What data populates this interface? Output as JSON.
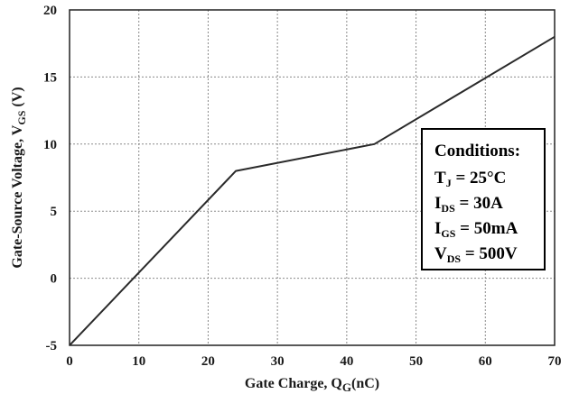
{
  "chart_data": {
    "type": "line",
    "xlabel": {
      "main": "Gate Charge, Q",
      "sub": "G",
      "tail": "(nC)"
    },
    "ylabel": {
      "main": "Gate-Source Voltage, V",
      "sub": "GS",
      "tail": " (V)"
    },
    "xlim": [
      0,
      70
    ],
    "ylim": [
      -5,
      20
    ],
    "xticks": [
      "0",
      "10",
      "20",
      "30",
      "40",
      "50",
      "60",
      "70"
    ],
    "yticks": [
      "-5",
      "0",
      "5",
      "10",
      "15",
      "20"
    ],
    "grid": true,
    "series": [
      {
        "x": [
          0,
          24,
          44,
          70
        ],
        "y": [
          -5,
          8,
          10,
          18
        ]
      }
    ],
    "annotation": {
      "title": "Conditions:",
      "lines": [
        {
          "main": "T",
          "sub": "J",
          "rest": " = 25°C"
        },
        {
          "main": "I",
          "sub": "DS",
          "rest": " = 30A"
        },
        {
          "main": "I",
          "sub": "GS",
          "rest": " = 50mA"
        },
        {
          "main": "V",
          "sub": "DS",
          "rest": " = 500V"
        }
      ]
    }
  }
}
